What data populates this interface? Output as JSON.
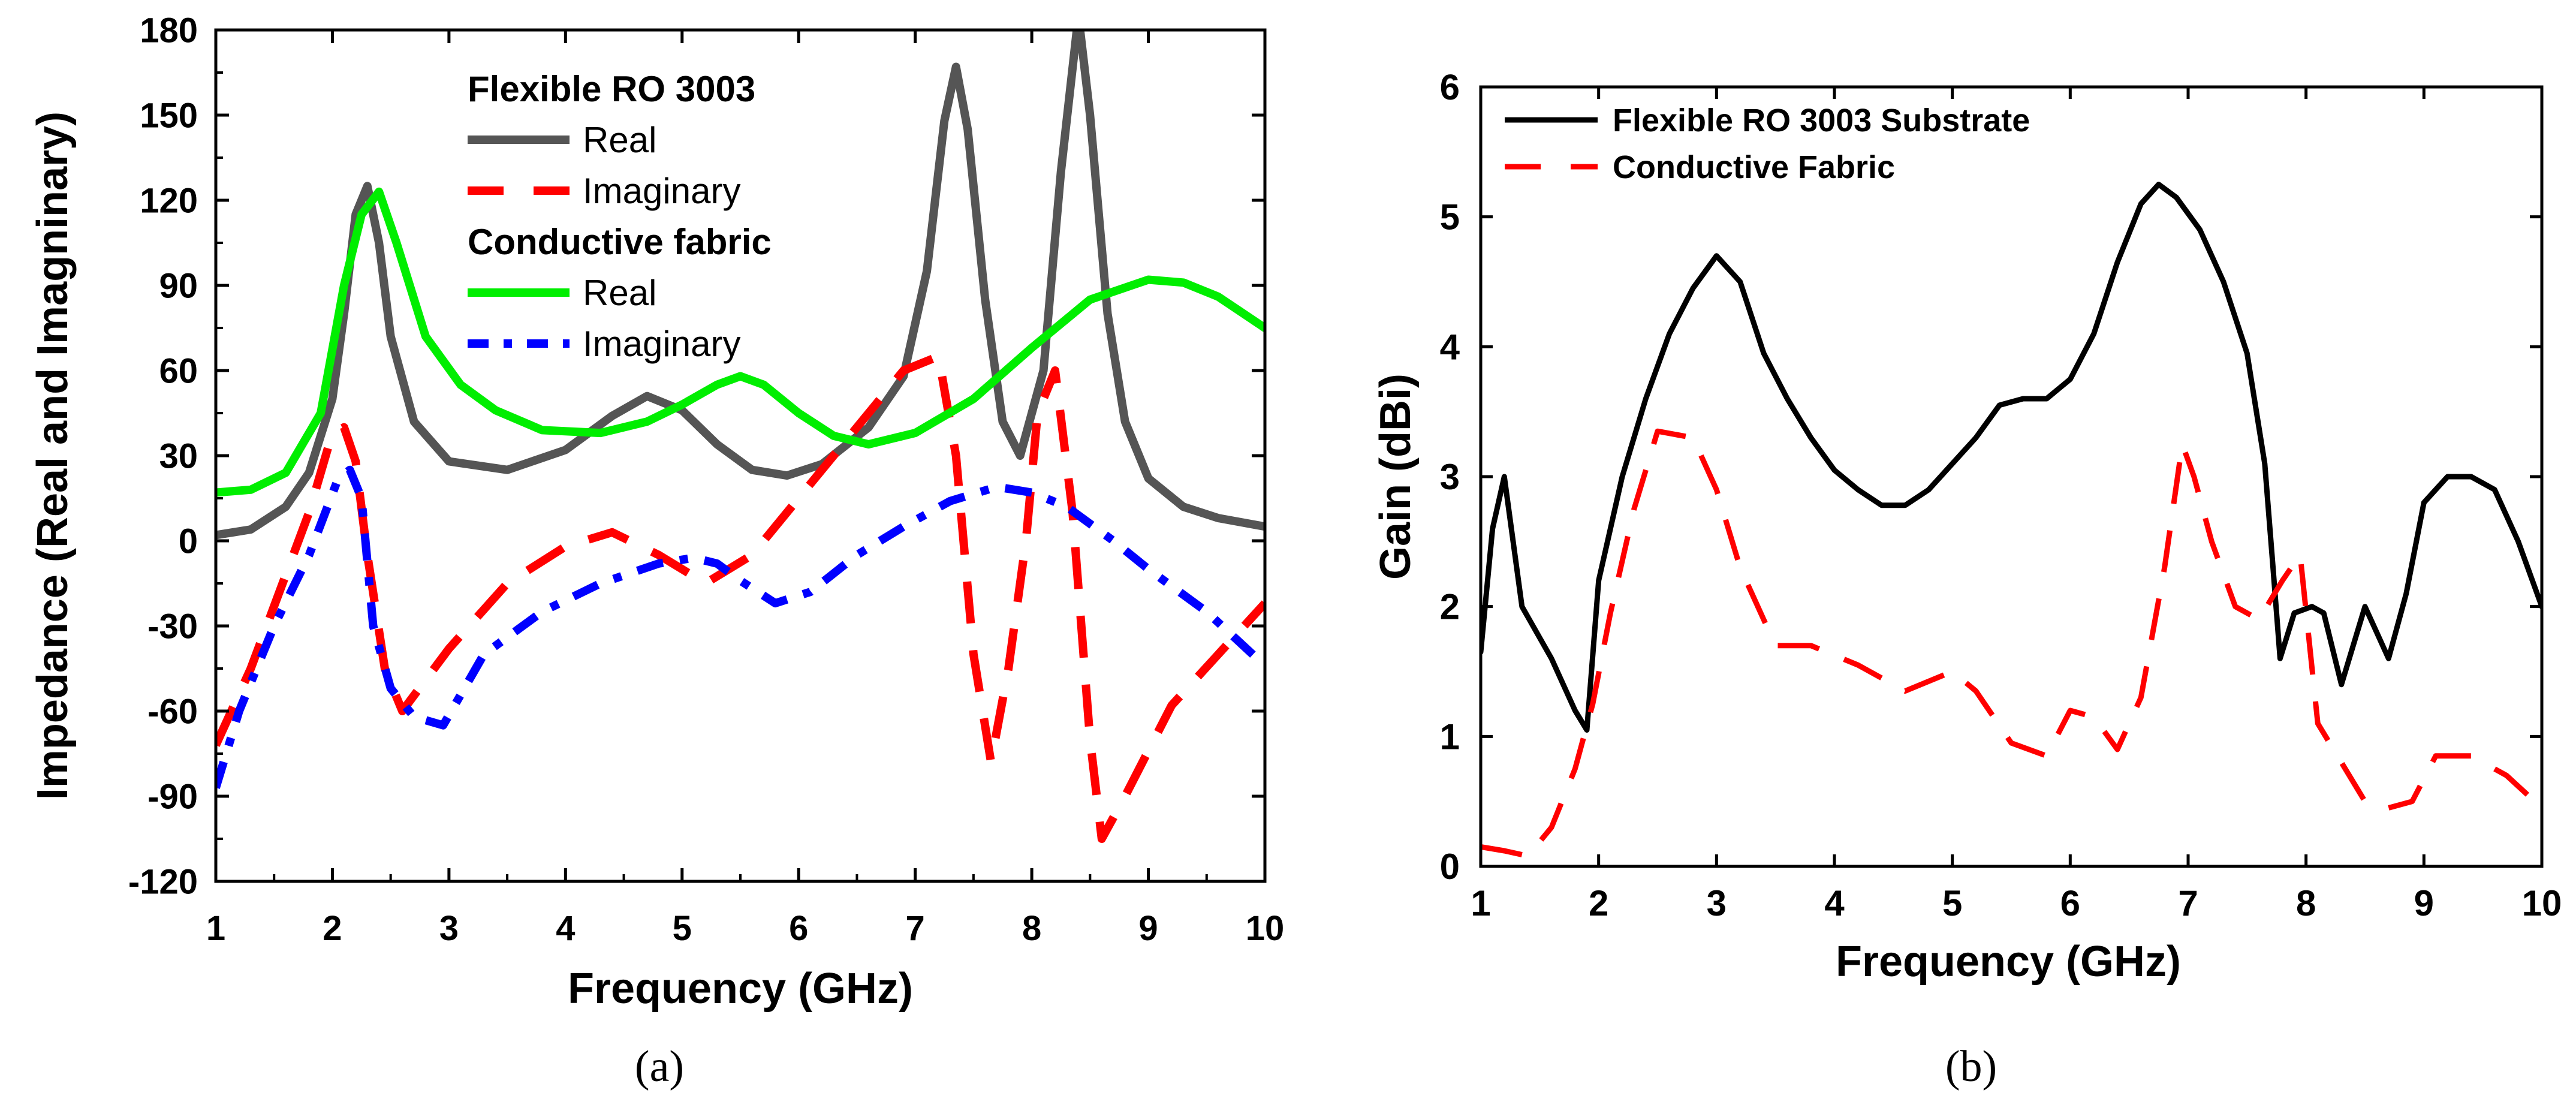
{
  "chart_data": [
    {
      "type": "line",
      "panel": "(a)",
      "xlabel": "Frequency (GHz)",
      "ylabel": "Impedance (Real and Imagninary)",
      "xlim": [
        1,
        10
      ],
      "ylim": [
        -120,
        180
      ],
      "xticks": [
        1,
        2,
        3,
        4,
        5,
        6,
        7,
        8,
        9,
        10
      ],
      "yticks": [
        -120,
        -90,
        -60,
        -30,
        0,
        30,
        60,
        90,
        120,
        150,
        180
      ],
      "grid": false,
      "legend_position": "top-center",
      "legend": [
        {
          "kind": "heading",
          "text": "Flexible RO 3003"
        },
        {
          "kind": "entry",
          "series": 0,
          "text": "Real"
        },
        {
          "kind": "entry",
          "series": 1,
          "text": "Imaginary"
        },
        {
          "kind": "heading",
          "text": "Conductive fabric"
        },
        {
          "kind": "entry",
          "series": 2,
          "text": "Real"
        },
        {
          "kind": "entry",
          "series": 3,
          "text": "Imaginary"
        }
      ],
      "series": [
        {
          "name": "Flexible RO 3003 Real",
          "color": "#555555",
          "dash": "solid",
          "width": 14,
          "x": [
            1.0,
            1.3,
            1.6,
            1.8,
            2.0,
            2.1,
            2.2,
            2.3,
            2.4,
            2.5,
            2.7,
            3.0,
            3.5,
            4.0,
            4.4,
            4.7,
            5.0,
            5.3,
            5.6,
            5.9,
            6.2,
            6.6,
            6.9,
            7.1,
            7.25,
            7.35,
            7.45,
            7.6,
            7.75,
            7.9,
            8.1,
            8.25,
            8.4,
            8.5,
            8.65,
            8.8,
            9.0,
            9.3,
            9.6,
            10.0
          ],
          "y": [
            2,
            4,
            12,
            24,
            50,
            80,
            115,
            125,
            105,
            72,
            42,
            28,
            25,
            32,
            44,
            51,
            46,
            34,
            25,
            23,
            27,
            40,
            58,
            95,
            148,
            167,
            145,
            85,
            42,
            30,
            60,
            130,
            185,
            150,
            80,
            42,
            22,
            12,
            8,
            5
          ]
        },
        {
          "name": "Flexible RO 3003 Imaginary",
          "color": "#ff0000",
          "dash": "long-dash",
          "width": 14,
          "x": [
            1.0,
            1.3,
            1.6,
            1.8,
            2.0,
            2.1,
            2.2,
            2.3,
            2.45,
            2.6,
            3.0,
            3.5,
            4.0,
            4.4,
            4.8,
            5.2,
            5.6,
            6.0,
            6.5,
            6.9,
            7.2,
            7.35,
            7.5,
            7.65,
            7.8,
            7.95,
            8.05,
            8.2,
            8.35,
            8.5,
            8.6,
            8.8,
            9.2,
            9.6,
            10.0
          ],
          "y": [
            -72,
            -45,
            -12,
            10,
            38,
            40,
            28,
            -5,
            -45,
            -60,
            -38,
            -15,
            -2,
            3,
            -5,
            -15,
            -5,
            15,
            40,
            60,
            65,
            30,
            -40,
            -78,
            -45,
            0,
            45,
            60,
            10,
            -70,
            -105,
            -90,
            -58,
            -40,
            -22
          ]
        },
        {
          "name": "Conductive fabric Real",
          "color": "#00ee00",
          "dash": "solid",
          "width": 14,
          "x": [
            1.0,
            1.3,
            1.6,
            1.9,
            2.1,
            2.25,
            2.4,
            2.55,
            2.8,
            3.1,
            3.4,
            3.8,
            4.3,
            4.7,
            5.0,
            5.3,
            5.5,
            5.7,
            6.0,
            6.3,
            6.6,
            7.0,
            7.5,
            8.0,
            8.5,
            9.0,
            9.3,
            9.6,
            10.0
          ],
          "y": [
            17,
            18,
            24,
            45,
            90,
            115,
            123,
            105,
            72,
            55,
            46,
            39,
            38,
            42,
            48,
            55,
            58,
            55,
            45,
            37,
            34,
            38,
            50,
            68,
            85,
            92,
            91,
            86,
            75
          ]
        },
        {
          "name": "Conductive fabric Imaginary",
          "color": "#0000ff",
          "dash": "dash-dot",
          "width": 14,
          "x": [
            1.0,
            1.2,
            1.5,
            1.8,
            2.05,
            2.15,
            2.25,
            2.35,
            2.5,
            2.7,
            2.95,
            3.3,
            3.8,
            4.3,
            4.8,
            5.1,
            5.3,
            5.5,
            5.8,
            6.1,
            6.5,
            6.9,
            7.3,
            7.7,
            8.0,
            8.3,
            8.7,
            9.0,
            9.5,
            10.0
          ],
          "y": [
            -87,
            -60,
            -30,
            -5,
            22,
            25,
            15,
            -30,
            -52,
            -62,
            -65,
            -40,
            -25,
            -15,
            -8,
            -6,
            -8,
            -14,
            -22,
            -18,
            -5,
            5,
            14,
            19,
            17,
            12,
            0,
            -10,
            -25,
            -44
          ]
        }
      ]
    },
    {
      "type": "line",
      "panel": "(b)",
      "xlabel": "Frequency (GHz)",
      "ylabel": "Gain (dBi)",
      "xlim": [
        1,
        10
      ],
      "ylim": [
        0,
        6
      ],
      "xticks": [
        1,
        2,
        3,
        4,
        5,
        6,
        7,
        8,
        9,
        10
      ],
      "yticks": [
        0,
        1,
        2,
        3,
        4,
        5,
        6
      ],
      "grid": false,
      "legend_position": "top-left",
      "legend": [
        {
          "kind": "entry",
          "series": 0,
          "text": "Flexible RO 3003 Substrate"
        },
        {
          "kind": "entry",
          "series": 1,
          "text": "Conductive Fabric"
        }
      ],
      "series": [
        {
          "name": "Flexible RO 3003 Substrate",
          "color": "#000000",
          "dash": "solid",
          "width": 9,
          "x": [
            1.0,
            1.1,
            1.2,
            1.35,
            1.6,
            1.8,
            1.9,
            2.0,
            2.2,
            2.4,
            2.6,
            2.8,
            3.0,
            3.2,
            3.4,
            3.6,
            3.8,
            4.0,
            4.2,
            4.4,
            4.6,
            4.8,
            5.0,
            5.2,
            5.4,
            5.6,
            5.8,
            6.0,
            6.2,
            6.4,
            6.6,
            6.75,
            6.9,
            7.1,
            7.3,
            7.5,
            7.65,
            7.72,
            7.78,
            7.9,
            8.05,
            8.15,
            8.3,
            8.5,
            8.6,
            8.7,
            8.85,
            9.0,
            9.2,
            9.4,
            9.6,
            9.8,
            10.0
          ],
          "y": [
            1.65,
            2.6,
            3.0,
            2.0,
            1.6,
            1.2,
            1.05,
            2.2,
            3.0,
            3.6,
            4.1,
            4.45,
            4.7,
            4.5,
            3.95,
            3.6,
            3.3,
            3.05,
            2.9,
            2.78,
            2.78,
            2.9,
            3.1,
            3.3,
            3.55,
            3.6,
            3.6,
            3.75,
            4.1,
            4.65,
            5.1,
            5.25,
            5.15,
            4.9,
            4.5,
            3.95,
            3.1,
            2.3,
            1.6,
            1.95,
            2.0,
            1.95,
            1.4,
            2.0,
            1.8,
            1.6,
            2.1,
            2.8,
            3.0,
            3.0,
            2.9,
            2.5,
            2.0
          ]
        },
        {
          "name": "Conductive Fabric",
          "color": "#ff0000",
          "dash": "long-dash",
          "width": 9,
          "x": [
            1.0,
            1.2,
            1.4,
            1.6,
            1.8,
            1.95,
            2.1,
            2.3,
            2.5,
            2.8,
            3.0,
            3.2,
            3.5,
            3.8,
            4.2,
            4.6,
            5.0,
            5.2,
            5.5,
            5.8,
            6.0,
            6.2,
            6.4,
            6.6,
            6.8,
            6.95,
            7.05,
            7.2,
            7.4,
            7.6,
            7.8,
            7.95,
            8.1,
            8.3,
            8.5,
            8.7,
            8.9,
            9.1,
            9.4,
            9.7,
            10.0
          ],
          "y": [
            0.15,
            0.12,
            0.08,
            0.3,
            0.75,
            1.25,
            1.95,
            2.75,
            3.35,
            3.3,
            2.9,
            2.3,
            1.7,
            1.7,
            1.55,
            1.35,
            1.5,
            1.35,
            0.95,
            0.85,
            1.2,
            1.15,
            0.9,
            1.3,
            2.3,
            3.25,
            3.0,
            2.5,
            2.0,
            1.9,
            2.2,
            2.4,
            1.1,
            0.8,
            0.5,
            0.45,
            0.5,
            0.85,
            0.85,
            0.7,
            0.45
          ]
        }
      ]
    }
  ]
}
